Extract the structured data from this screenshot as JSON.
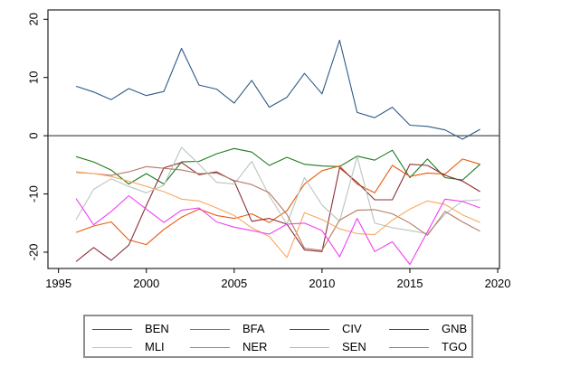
{
  "chart_data": {
    "type": "line",
    "title": "",
    "xlabel": "",
    "ylabel": "",
    "x": [
      1996,
      1997,
      1998,
      1999,
      2000,
      2001,
      2002,
      2003,
      2004,
      2005,
      2006,
      2007,
      2008,
      2009,
      2010,
      2011,
      2012,
      2013,
      2014,
      2015,
      2016,
      2017,
      2018,
      2019
    ],
    "series": [
      {
        "name": "BEN",
        "color": "#1e7b1e",
        "values": [
          -3.6,
          -4.5,
          -5.9,
          -8.3,
          -6.5,
          -8.3,
          -4.5,
          -4.4,
          -3.1,
          -2.2,
          -2.8,
          -5.1,
          -3.7,
          -4.9,
          -5.2,
          -5.3,
          -3.5,
          -4.2,
          -2.5,
          -7.2,
          -4.0,
          -7.2,
          -7.6,
          -4.9
        ]
      },
      {
        "name": "BFA",
        "color": "#e8590c",
        "values": [
          -16.6,
          -15.5,
          -14.8,
          -17.9,
          -18.7,
          -16.1,
          -14.0,
          -12.6,
          -13.7,
          -14.2,
          -13.4,
          -14.9,
          -12.9,
          -8.3,
          -6.0,
          -5.2,
          -8.3,
          -9.8,
          -5.1,
          -7.0,
          -6.4,
          -6.6,
          -4.0,
          -4.9
        ]
      },
      {
        "name": "CIV",
        "color": "#2d5986",
        "values": [
          8.5,
          7.5,
          6.2,
          8.1,
          6.9,
          7.6,
          15.0,
          8.7,
          8.0,
          5.6,
          9.5,
          4.9,
          6.6,
          10.7,
          7.2,
          16.4,
          4.0,
          3.1,
          4.9,
          1.8,
          1.6,
          1.0,
          -0.6,
          1.1
        ]
      },
      {
        "name": "GNB",
        "color": "#8b3038",
        "values": [
          -21.6,
          -19.2,
          -21.4,
          -18.8,
          -12.0,
          -5.5,
          -4.6,
          -6.7,
          -6.2,
          -7.8,
          -14.7,
          -14.2,
          -15.2,
          -19.6,
          -19.9,
          -5.5,
          -8.0,
          -11.0,
          -11.0,
          -4.9,
          -5.1,
          -6.8,
          -7.8,
          -9.6
        ]
      },
      {
        "name": "MLI",
        "color": "#b7c6c0",
        "values": [
          -14.4,
          -9.2,
          -7.4,
          -8.7,
          -9.8,
          -8.5,
          -2.0,
          -4.9,
          -8.0,
          -8.3,
          -4.4,
          -10.3,
          -15.2,
          -7.2,
          -11.9,
          -14.7,
          -3.6,
          -15.0,
          -15.8,
          -16.3,
          -16.8,
          -13.5,
          -11.2,
          -11.0
        ]
      },
      {
        "name": "NER",
        "color": "#b57a62",
        "values": [
          -6.3,
          -6.5,
          -6.8,
          -6.2,
          -5.3,
          -5.6,
          -5.9,
          -6.5,
          -6.4,
          -7.7,
          -8.4,
          -9.8,
          -13.5,
          -19.3,
          -19.7,
          -14.5,
          -12.8,
          -12.7,
          -13.4,
          -15.0,
          -17.1,
          -13.0,
          -14.8,
          -16.4
        ]
      },
      {
        "name": "SEN",
        "color": "#f8a75f",
        "values": [
          -6.2,
          -6.5,
          -7.0,
          -7.8,
          -8.7,
          -9.6,
          -10.9,
          -11.2,
          -12.4,
          -13.7,
          -15.8,
          -17.3,
          -20.9,
          -13.2,
          -14.4,
          -16.0,
          -16.8,
          -17.0,
          -14.5,
          -12.6,
          -11.2,
          -11.8,
          -13.6,
          -14.9
        ]
      },
      {
        "name": "TGO",
        "color": "#f03ef0",
        "values": [
          -10.8,
          -15.3,
          -13.0,
          -10.3,
          -12.6,
          -14.9,
          -12.8,
          -12.4,
          -14.8,
          -15.7,
          -16.3,
          -16.9,
          -15.2,
          -15.0,
          -16.3,
          -20.8,
          -14.2,
          -19.9,
          -18.2,
          -22.1,
          -16.5,
          -10.9,
          -11.3,
          -12.4
        ]
      }
    ],
    "x_ticks": [
      1995,
      2000,
      2005,
      2010,
      2015,
      2020
    ],
    "y_ticks": [
      20,
      10,
      0,
      -10,
      -20
    ],
    "xlim": [
      1994.4,
      2020.1
    ],
    "ylim": [
      -22.8,
      21.6
    ],
    "zero_line": true,
    "grid": false,
    "legend_position": "bottom",
    "legend_rows": [
      [
        "BEN",
        "BFA",
        "CIV",
        "GNB"
      ],
      [
        "MLI",
        "NER",
        "SEN",
        "TGO"
      ]
    ]
  },
  "style": {
    "plot_border_color": "#262626",
    "zero_line_color": "#4d4d4d",
    "tick_color": "#000000"
  }
}
